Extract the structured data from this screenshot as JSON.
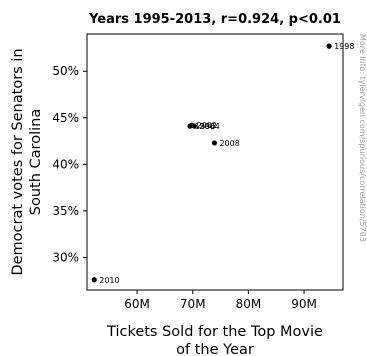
{
  "chart_data": {
    "type": "scatter",
    "title": "Years 1995-2013, r=0.924, p<0.01",
    "xlabel": [
      "Tickets Sold for the Top Movie",
      "of the Year"
    ],
    "ylabel": [
      "Democrat votes for Senators in",
      "South Carolina"
    ],
    "xlim": [
      51000000,
      97000000
    ],
    "ylim": [
      0.265,
      0.54
    ],
    "xticks": [
      60000000,
      70000000,
      80000000,
      90000000
    ],
    "xtick_labels": [
      "60M",
      "70M",
      "80M",
      "90M"
    ],
    "yticks": [
      0.3,
      0.35,
      0.4,
      0.45,
      0.5
    ],
    "ytick_labels": [
      "30%",
      "35%",
      "40%",
      "45%",
      "50%"
    ],
    "grid": false,
    "points": [
      {
        "label": "1998",
        "x": 94500000,
        "y": 0.527
      },
      {
        "label": "2002",
        "x": 69800000,
        "y": 0.442
      },
      {
        "label": "2004",
        "x": 70300000,
        "y": 0.441
      },
      {
        "label": "1996",
        "x": 69500000,
        "y": 0.441
      },
      {
        "label": "2008",
        "x": 73900000,
        "y": 0.423
      },
      {
        "label": "2010",
        "x": 52300000,
        "y": 0.276
      }
    ],
    "watermark": "More info: tylervigen.com/spurious/correlation/5703"
  }
}
